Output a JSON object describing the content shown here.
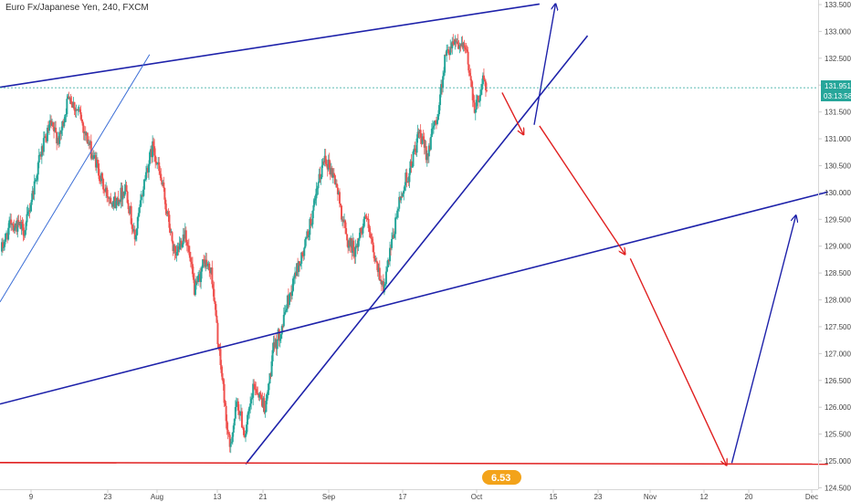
{
  "header": {
    "title": "Euro Fx/Japanese Yen, 240, FXCM"
  },
  "colors": {
    "up": "#26a69a",
    "down": "#ef5350",
    "blue_line": "#1e22aa",
    "light_blue_line": "#3d6fd6",
    "red_line": "#e02020",
    "price_tag": "#26a69a"
  },
  "watermark": {
    "text": "6.53",
    "icon": "tradingview-logo-icon"
  },
  "chart_data": {
    "type": "candlestick",
    "x_ticks": [
      "9",
      "23",
      "Aug",
      "13",
      "21",
      "Sep",
      "17",
      "Oct",
      "15",
      "23",
      "Nov",
      "12",
      "20",
      "Dec"
    ],
    "y_ticks": [
      "133.500",
      "133.000",
      "132.500",
      "132.000",
      "131.500",
      "131.000",
      "130.500",
      "130.000",
      "129.500",
      "129.000",
      "128.500",
      "128.000",
      "127.500",
      "127.000",
      "126.500",
      "126.000",
      "125.500",
      "125.000",
      "124.500"
    ],
    "ylim": [
      124.4,
      133.5
    ],
    "last_price": "131.951",
    "countdown": "03:13:58",
    "price_path": [
      [
        128.9,
        12
      ],
      [
        129.5,
        12
      ],
      [
        129.3,
        14
      ],
      [
        130.5,
        14
      ],
      [
        131.2,
        12
      ],
      [
        131.0,
        10
      ],
      [
        131.9,
        12
      ],
      [
        131.4,
        12
      ],
      [
        130.6,
        14
      ],
      [
        130.0,
        12
      ],
      [
        129.8,
        12
      ],
      [
        130.1,
        10
      ],
      [
        129.1,
        10
      ],
      [
        130.2,
        10
      ],
      [
        130.9,
        10
      ],
      [
        129.9,
        12
      ],
      [
        128.7,
        12
      ],
      [
        129.3,
        10
      ],
      [
        128.2,
        10
      ],
      [
        128.7,
        10
      ],
      [
        128.5,
        8
      ],
      [
        127.1,
        8
      ],
      [
        126.2,
        6
      ],
      [
        125.2,
        6
      ],
      [
        126.1,
        8
      ],
      [
        125.5,
        8
      ],
      [
        126.4,
        10
      ],
      [
        126.0,
        12
      ],
      [
        127.2,
        10
      ],
      [
        127.6,
        10
      ],
      [
        128.3,
        10
      ],
      [
        128.9,
        12
      ],
      [
        129.8,
        12
      ],
      [
        130.7,
        10
      ],
      [
        130.2,
        12
      ],
      [
        129.1,
        12
      ],
      [
        128.9,
        10
      ],
      [
        129.6,
        10
      ],
      [
        128.7,
        10
      ],
      [
        128.2,
        10
      ],
      [
        129.4,
        12
      ],
      [
        130.3,
        12
      ],
      [
        131.0,
        12
      ],
      [
        130.7,
        10
      ],
      [
        131.4,
        10
      ],
      [
        132.6,
        10
      ],
      [
        132.9,
        10
      ],
      [
        132.6,
        12
      ],
      [
        131.5,
        10
      ],
      [
        132.1,
        8
      ],
      [
        131.9,
        4
      ]
    ],
    "trendlines": [
      {
        "name": "upper-channel-line",
        "color": "blue",
        "width": 1.6,
        "from": [
          "2018-06-30",
          131.96
        ],
        "to": [
          "2018-10-09",
          133.51
        ]
      },
      {
        "name": "middle-channel-line",
        "color": "blue",
        "width": 1.6,
        "from": [
          "2018-06-30",
          126.06
        ],
        "to": [
          "2018-12-02",
          130.01
        ]
      },
      {
        "name": "rising-support-line",
        "color": "blue",
        "width": 1.6,
        "from": [
          "2018-08-15",
          124.94
        ],
        "to": [
          "2018-10-18",
          132.92
        ]
      },
      {
        "name": "old-rising-line",
        "color": "light_blue",
        "width": 1.0,
        "from": [
          "2018-06-30",
          127.96
        ],
        "to": [
          "2018-07-28",
          132.57
        ]
      },
      {
        "name": "support-level-line",
        "color": "red",
        "width": 1.6,
        "from": [
          "2018-06-30",
          124.97
        ],
        "to": [
          "2018-12-02",
          124.94
        ]
      }
    ],
    "forecast_arrows": [
      {
        "color": "red",
        "from": [
          "2018-10-02",
          131.86
        ],
        "to": [
          "2018-10-06",
          131.08
        ]
      },
      {
        "color": "blue",
        "from": [
          "2018-10-08",
          131.26
        ],
        "to": [
          "2018-10-12",
          133.51
        ]
      },
      {
        "color": "red",
        "from": [
          "2018-10-09",
          131.24
        ],
        "to": [
          "2018-10-25",
          128.85
        ]
      },
      {
        "color": "red",
        "from": [
          "2018-10-26",
          128.77
        ],
        "to": [
          "2018-11-13",
          124.92
        ]
      },
      {
        "color": "blue",
        "from": [
          "2018-11-14",
          124.96
        ],
        "to": [
          "2018-11-26",
          129.57
        ]
      }
    ]
  }
}
